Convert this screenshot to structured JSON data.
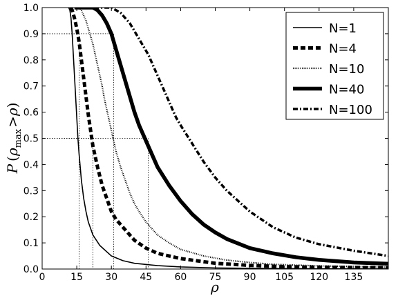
{
  "chart_data": {
    "type": "line",
    "title": "",
    "xlabel": "ρ",
    "ylabel": "P (ρ_max > ρ)",
    "ylabel_parts": {
      "p": "P",
      "open": "(",
      "rho": "ρ",
      "sub": "max",
      "gt": ">",
      "rho2": "ρ",
      "close": ")"
    },
    "xlim": [
      0,
      150
    ],
    "ylim": [
      0.0,
      1.0
    ],
    "xticks": [
      0,
      15,
      30,
      45,
      60,
      75,
      90,
      105,
      120,
      135
    ],
    "xtick_labels": [
      "0",
      "15",
      "30",
      "45",
      "60",
      "75",
      "90",
      "105",
      "120",
      "135"
    ],
    "yticks": [
      0.0,
      0.1,
      0.2,
      0.3,
      0.4,
      0.5,
      0.6,
      0.7,
      0.8,
      0.9,
      1.0
    ],
    "ytick_labels": [
      "0.0",
      "0.1",
      "0.2",
      "0.3",
      "0.4",
      "0.5",
      "0.6",
      "0.7",
      "0.8",
      "0.9",
      "1.0"
    ],
    "grid": false,
    "legend_position": "top-right",
    "reference_lines": {
      "y_levels": [
        0.5,
        0.9
      ],
      "points_at_0_9": [
        16,
        31
      ],
      "points_at_0_5": [
        22,
        46
      ]
    },
    "series": [
      {
        "name": "N=1",
        "style": "solid-thin",
        "x": [
          11.5,
          12,
          12.5,
          13,
          13.5,
          14,
          14.5,
          15,
          15.5,
          16,
          17,
          18,
          19,
          20,
          22,
          25,
          30,
          35,
          40,
          50,
          60,
          75,
          100,
          125,
          150
        ],
        "y": [
          1.0,
          0.99,
          0.96,
          0.9,
          0.82,
          0.74,
          0.66,
          0.58,
          0.5,
          0.44,
          0.34,
          0.27,
          0.22,
          0.18,
          0.13,
          0.09,
          0.05,
          0.032,
          0.022,
          0.013,
          0.008,
          0.004,
          0.002,
          0.001,
          0.0008
        ]
      },
      {
        "name": "N=4",
        "style": "dashed-thick",
        "x": [
          12.5,
          13,
          14,
          15,
          16,
          17,
          18,
          19,
          20,
          21,
          22,
          24,
          26,
          28,
          30,
          32,
          35,
          40,
          45,
          50,
          60,
          75,
          90,
          105,
          120,
          150
        ],
        "y": [
          1.0,
          0.99,
          0.96,
          0.92,
          0.87,
          0.8,
          0.73,
          0.66,
          0.59,
          0.53,
          0.47,
          0.39,
          0.32,
          0.27,
          0.22,
          0.19,
          0.16,
          0.11,
          0.08,
          0.06,
          0.04,
          0.022,
          0.014,
          0.009,
          0.007,
          0.005
        ]
      },
      {
        "name": "N=10",
        "style": "dotted",
        "x": [
          16,
          17,
          18,
          19,
          20,
          21,
          22,
          23,
          24,
          25,
          26,
          27,
          28,
          29,
          30,
          31,
          32,
          34,
          36,
          38,
          40,
          42,
          45,
          50,
          55,
          60,
          70,
          80,
          90,
          100,
          120,
          150
        ],
        "y": [
          1.0,
          0.99,
          0.97,
          0.95,
          0.92,
          0.89,
          0.86,
          0.82,
          0.78,
          0.74,
          0.7,
          0.65,
          0.61,
          0.57,
          0.53,
          0.49,
          0.45,
          0.39,
          0.34,
          0.29,
          0.25,
          0.22,
          0.18,
          0.13,
          0.1,
          0.075,
          0.05,
          0.034,
          0.025,
          0.018,
          0.012,
          0.007
        ]
      },
      {
        "name": "N=40",
        "style": "solid-thick",
        "x": [
          14,
          18,
          20,
          22,
          24,
          26,
          28,
          30,
          32,
          34,
          36,
          38,
          40,
          42,
          44,
          46,
          48,
          50,
          55,
          60,
          65,
          70,
          75,
          80,
          90,
          100,
          110,
          120,
          135,
          150
        ],
        "y": [
          1.0,
          1.0,
          1.0,
          1.0,
          0.99,
          0.97,
          0.94,
          0.9,
          0.84,
          0.78,
          0.72,
          0.66,
          0.6,
          0.55,
          0.51,
          0.47,
          0.43,
          0.39,
          0.32,
          0.26,
          0.21,
          0.17,
          0.14,
          0.115,
          0.08,
          0.06,
          0.045,
          0.035,
          0.025,
          0.02
        ]
      },
      {
        "name": "N=100",
        "style": "dash-dot",
        "x": [
          18,
          25,
          30,
          32,
          34,
          36,
          38,
          40,
          42,
          44,
          46,
          48,
          50,
          52,
          55,
          58,
          60,
          65,
          70,
          75,
          80,
          90,
          100,
          110,
          120,
          135,
          150
        ],
        "y": [
          1.0,
          1.0,
          1.0,
          0.99,
          0.98,
          0.96,
          0.94,
          0.91,
          0.88,
          0.85,
          0.82,
          0.78,
          0.74,
          0.7,
          0.64,
          0.58,
          0.55,
          0.48,
          0.41,
          0.35,
          0.3,
          0.22,
          0.16,
          0.12,
          0.095,
          0.07,
          0.05
        ]
      }
    ]
  }
}
